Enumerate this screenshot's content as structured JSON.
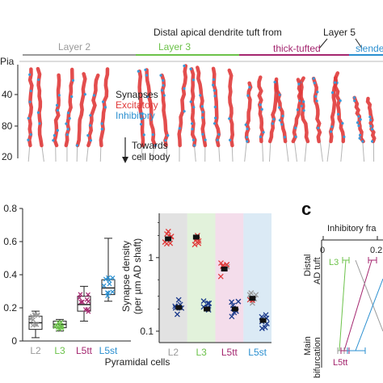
{
  "figure": {
    "top_title": "Distal apical dendrite tuft from",
    "layer5_label": "Layer 5",
    "layers": [
      {
        "name": "Layer 2",
        "color": "#9a9a9a"
      },
      {
        "name": "Layer 3",
        "color": "#6cc24a"
      },
      {
        "name": "thick-tufted",
        "color": "#a4266f"
      },
      {
        "name": "slende",
        "color": "#2a8fd0"
      }
    ],
    "depth_axis": {
      "labels": [
        "Pia",
        "40",
        "80",
        "20"
      ]
    },
    "legend": {
      "synapses": "Synapses",
      "excitatory": "Excitatory",
      "inhibitory": "Inhibitory",
      "colors": {
        "excitatory": "#e03a3a",
        "inhibitory": "#3a9ad9"
      }
    },
    "towards": {
      "line1": "Towards",
      "line2": "cell body"
    },
    "panel_c": {
      "letter": "c",
      "axis_title": "Inhibitory fra",
      "ytop": "Distal",
      "ytop2": "AD tuft",
      "ybot": "Main",
      "ybot2": "bifurcation",
      "label_l3": "L3",
      "label_l5tt": "L5tt",
      "ticks": [
        "0",
        "0.2"
      ]
    }
  },
  "chart_data": [
    {
      "type": "box",
      "categories": [
        "L2",
        "L3",
        "L5tt",
        "L5st"
      ],
      "category_colors": [
        "#9a9a9a",
        "#6cc24a",
        "#a4266f",
        "#2a8fd0"
      ],
      "xlabel": "Pyramidal cells",
      "yticks": [
        "0",
        "0.2",
        "0.4",
        "0.6",
        "0.8"
      ],
      "ylim": [
        0,
        0.8
      ],
      "series": [
        {
          "category": "L2",
          "min": 0.02,
          "q1": 0.07,
          "median": 0.11,
          "q3": 0.15,
          "max": 0.18
        },
        {
          "category": "L3",
          "min": 0.06,
          "q1": 0.08,
          "median": 0.1,
          "q3": 0.12,
          "max": 0.13
        },
        {
          "category": "L5tt",
          "min": 0.12,
          "q1": 0.18,
          "median": 0.22,
          "q3": 0.27,
          "max": 0.33
        },
        {
          "category": "L5st",
          "min": 0.24,
          "q1": 0.28,
          "median": 0.32,
          "q3": 0.37,
          "max": 0.62
        }
      ]
    },
    {
      "type": "scatter",
      "categories": [
        "L2",
        "L3",
        "L5tt",
        "L5st"
      ],
      "category_colors": [
        "#cfcfcf",
        "#cfe9c3",
        "#ecc7de",
        "#c3dcef"
      ],
      "ylabel_line1": "Synapse density",
      "ylabel_line2": "(per µm AD shaft)",
      "yticks": [
        "1",
        "0.1"
      ],
      "ylim_log": [
        0.07,
        4
      ],
      "series": [
        {
          "name": "excitatory",
          "color": "#e03a3a",
          "values": [
            1.8,
            1.9,
            0.7,
            0.28
          ]
        },
        {
          "name": "inhibitory",
          "color": "#1b3a8c",
          "values": [
            0.21,
            0.2,
            0.2,
            0.14
          ]
        }
      ]
    }
  ]
}
